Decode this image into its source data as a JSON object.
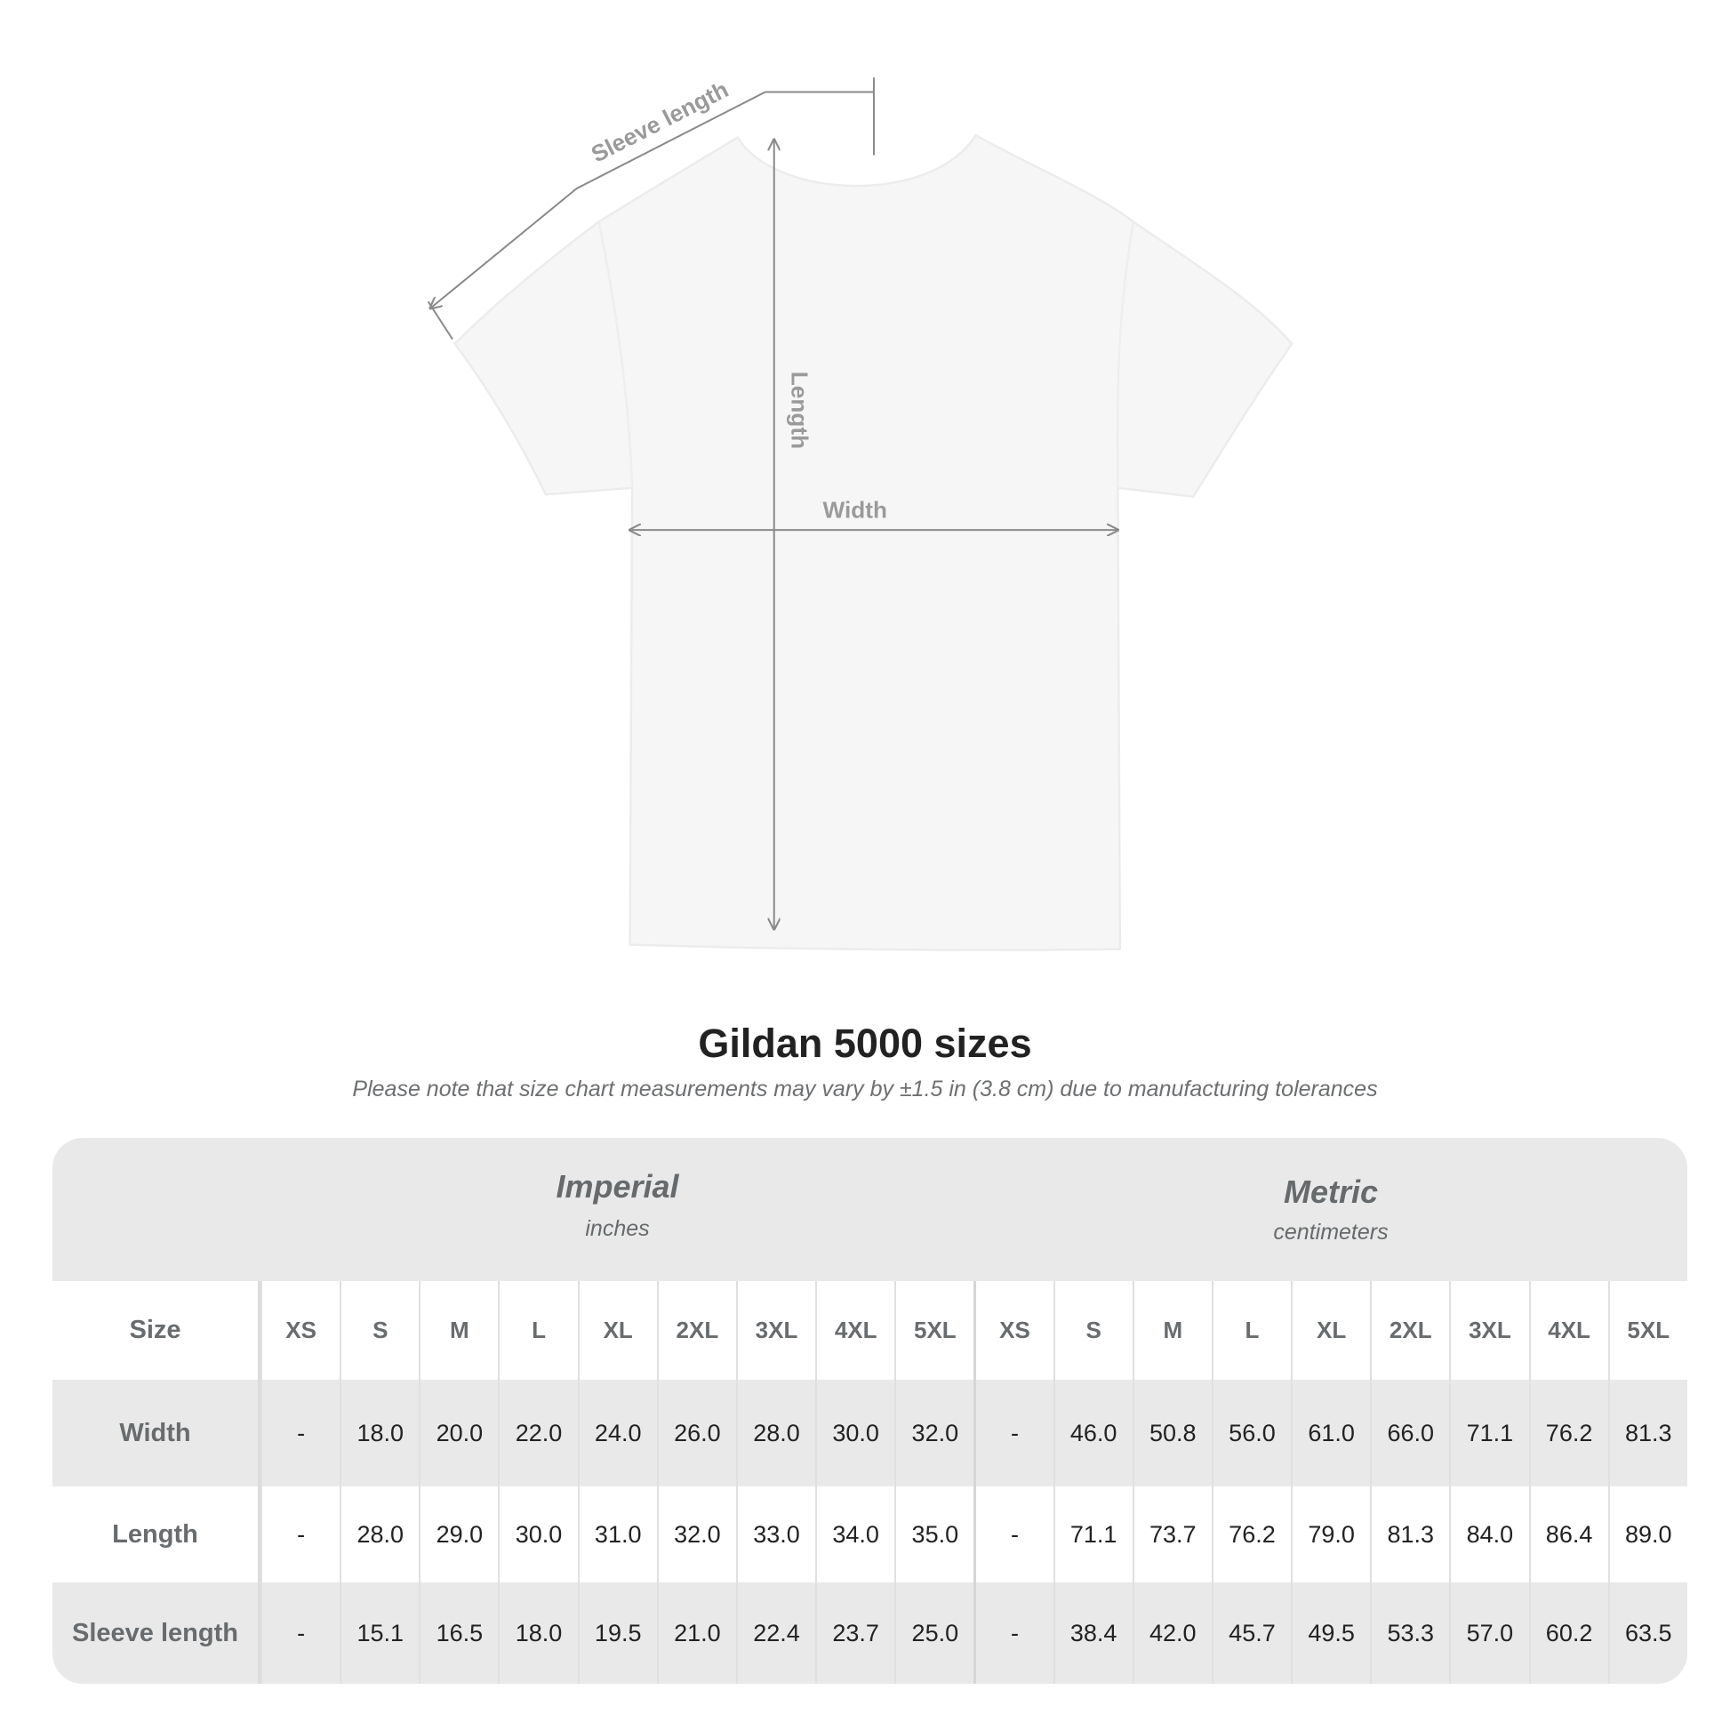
{
  "diagram": {
    "sleeve_label": "Sleeve length",
    "length_label": "Length",
    "width_label": "Width"
  },
  "title": "Gildan 5000 sizes",
  "note": "Please note that size chart measurements may vary by ±1.5 in (3.8 cm) due to manufacturing tolerances",
  "colors": {
    "table_bg": "#e9e9e9",
    "label_text": "#686c6e",
    "value_text": "#222222",
    "shirt": "#f6f6f6",
    "guide_lines": "#8a8a8a"
  },
  "table": {
    "imperial": {
      "name": "Imperial",
      "unit": "inches"
    },
    "metric": {
      "name": "Metric",
      "unit": "centimeters"
    },
    "size_label": "Size",
    "sizes": [
      "XS",
      "S",
      "M",
      "L",
      "XL",
      "2XL",
      "3XL",
      "4XL",
      "5XL"
    ],
    "rows": [
      {
        "label": "Width",
        "imperial": [
          "-",
          "18.0",
          "20.0",
          "22.0",
          "24.0",
          "26.0",
          "28.0",
          "30.0",
          "32.0"
        ],
        "metric": [
          "-",
          "46.0",
          "50.8",
          "56.0",
          "61.0",
          "66.0",
          "71.1",
          "76.2",
          "81.3"
        ]
      },
      {
        "label": "Length",
        "imperial": [
          "-",
          "28.0",
          "29.0",
          "30.0",
          "31.0",
          "32.0",
          "33.0",
          "34.0",
          "35.0"
        ],
        "metric": [
          "-",
          "71.1",
          "73.7",
          "76.2",
          "79.0",
          "81.3",
          "84.0",
          "86.4",
          "89.0"
        ]
      },
      {
        "label": "Sleeve length",
        "imperial": [
          "-",
          "15.1",
          "16.5",
          "18.0",
          "19.5",
          "21.0",
          "22.4",
          "23.7",
          "25.0"
        ],
        "metric": [
          "-",
          "38.4",
          "42.0",
          "45.7",
          "49.5",
          "53.3",
          "57.0",
          "60.2",
          "63.5"
        ]
      }
    ]
  }
}
